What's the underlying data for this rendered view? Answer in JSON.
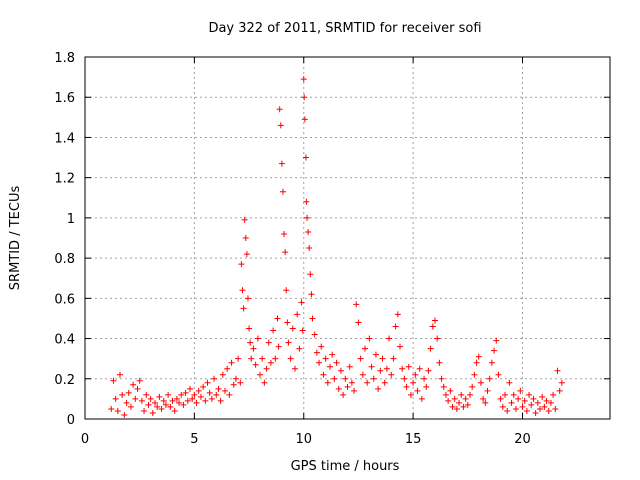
{
  "chart_data": {
    "type": "scatter",
    "title": "Day 322 of 2011, SRMTID for receiver sofi",
    "xlabel": "GPS time / hours",
    "ylabel": "SRMTID / TECUs",
    "xlim": [
      0,
      24
    ],
    "ylim": [
      0,
      1.8
    ],
    "xticks": [
      0,
      5,
      10,
      15,
      20
    ],
    "xtick_labels": [
      "0",
      "5",
      "10",
      "15",
      "20"
    ],
    "yticks": [
      0,
      0.2,
      0.4,
      0.6,
      0.8,
      1.0,
      1.2,
      1.4,
      1.6,
      1.8
    ],
    "ytick_labels": [
      "0",
      "0.2",
      "0.4",
      "0.6",
      "0.8",
      "1",
      "1.2",
      "1.4",
      "1.6",
      "1.8"
    ],
    "grid": true,
    "marker": "+",
    "series": [
      {
        "name": "SRMTID",
        "color": "#ff0000",
        "points": [
          [
            1.2,
            0.05
          ],
          [
            1.3,
            0.19
          ],
          [
            1.4,
            0.1
          ],
          [
            1.5,
            0.04
          ],
          [
            1.6,
            0.22
          ],
          [
            1.7,
            0.12
          ],
          [
            1.8,
            0.02
          ],
          [
            1.9,
            0.08
          ],
          [
            2.0,
            0.13
          ],
          [
            2.1,
            0.06
          ],
          [
            2.2,
            0.17
          ],
          [
            2.3,
            0.1
          ],
          [
            2.4,
            0.15
          ],
          [
            2.5,
            0.19
          ],
          [
            2.6,
            0.09
          ],
          [
            2.7,
            0.04
          ],
          [
            2.8,
            0.12
          ],
          [
            2.9,
            0.07
          ],
          [
            3.0,
            0.1
          ],
          [
            3.1,
            0.03
          ],
          [
            3.2,
            0.08
          ],
          [
            3.3,
            0.06
          ],
          [
            3.4,
            0.11
          ],
          [
            3.5,
            0.05
          ],
          [
            3.6,
            0.09
          ],
          [
            3.7,
            0.07
          ],
          [
            3.8,
            0.12
          ],
          [
            3.9,
            0.06
          ],
          [
            4.0,
            0.09
          ],
          [
            4.1,
            0.04
          ],
          [
            4.2,
            0.1
          ],
          [
            4.3,
            0.08
          ],
          [
            4.4,
            0.12
          ],
          [
            4.5,
            0.07
          ],
          [
            4.6,
            0.13
          ],
          [
            4.7,
            0.09
          ],
          [
            4.8,
            0.15
          ],
          [
            4.9,
            0.1
          ],
          [
            5.0,
            0.12
          ],
          [
            5.1,
            0.08
          ],
          [
            5.2,
            0.14
          ],
          [
            5.3,
            0.11
          ],
          [
            5.4,
            0.16
          ],
          [
            5.5,
            0.09
          ],
          [
            5.6,
            0.18
          ],
          [
            5.7,
            0.13
          ],
          [
            5.8,
            0.1
          ],
          [
            5.9,
            0.2
          ],
          [
            6.0,
            0.12
          ],
          [
            6.1,
            0.15
          ],
          [
            6.2,
            0.09
          ],
          [
            6.3,
            0.22
          ],
          [
            6.4,
            0.14
          ],
          [
            6.5,
            0.25
          ],
          [
            6.6,
            0.12
          ],
          [
            6.7,
            0.28
          ],
          [
            6.8,
            0.17
          ],
          [
            6.9,
            0.2
          ],
          [
            7.0,
            0.3
          ],
          [
            7.1,
            0.18
          ],
          [
            7.15,
            0.77
          ],
          [
            7.2,
            0.64
          ],
          [
            7.25,
            0.55
          ],
          [
            7.3,
            0.99
          ],
          [
            7.35,
            0.9
          ],
          [
            7.4,
            0.82
          ],
          [
            7.45,
            0.6
          ],
          [
            7.5,
            0.45
          ],
          [
            7.55,
            0.38
          ],
          [
            7.6,
            0.3
          ],
          [
            7.7,
            0.35
          ],
          [
            7.8,
            0.27
          ],
          [
            7.9,
            0.4
          ],
          [
            8.0,
            0.22
          ],
          [
            8.1,
            0.3
          ],
          [
            8.2,
            0.18
          ],
          [
            8.3,
            0.25
          ],
          [
            8.4,
            0.38
          ],
          [
            8.5,
            0.28
          ],
          [
            8.6,
            0.44
          ],
          [
            8.7,
            0.3
          ],
          [
            8.8,
            0.5
          ],
          [
            8.85,
            0.36
          ],
          [
            8.9,
            1.54
          ],
          [
            8.95,
            1.46
          ],
          [
            9.0,
            1.27
          ],
          [
            9.05,
            1.13
          ],
          [
            9.1,
            0.92
          ],
          [
            9.15,
            0.83
          ],
          [
            9.2,
            0.64
          ],
          [
            9.25,
            0.48
          ],
          [
            9.3,
            0.38
          ],
          [
            9.4,
            0.3
          ],
          [
            9.5,
            0.45
          ],
          [
            9.6,
            0.25
          ],
          [
            9.7,
            0.52
          ],
          [
            9.8,
            0.35
          ],
          [
            9.9,
            0.58
          ],
          [
            9.95,
            0.44
          ],
          [
            10.0,
            1.69
          ],
          [
            10.02,
            1.6
          ],
          [
            10.05,
            1.49
          ],
          [
            10.1,
            1.3
          ],
          [
            10.12,
            1.08
          ],
          [
            10.15,
            1.0
          ],
          [
            10.2,
            0.93
          ],
          [
            10.25,
            0.85
          ],
          [
            10.3,
            0.72
          ],
          [
            10.35,
            0.62
          ],
          [
            10.4,
            0.5
          ],
          [
            10.5,
            0.42
          ],
          [
            10.6,
            0.33
          ],
          [
            10.7,
            0.28
          ],
          [
            10.8,
            0.36
          ],
          [
            10.9,
            0.22
          ],
          [
            11.0,
            0.3
          ],
          [
            11.1,
            0.18
          ],
          [
            11.2,
            0.26
          ],
          [
            11.3,
            0.32
          ],
          [
            11.4,
            0.2
          ],
          [
            11.5,
            0.28
          ],
          [
            11.6,
            0.15
          ],
          [
            11.7,
            0.24
          ],
          [
            11.8,
            0.12
          ],
          [
            11.9,
            0.2
          ],
          [
            12.0,
            0.16
          ],
          [
            12.1,
            0.26
          ],
          [
            12.2,
            0.18
          ],
          [
            12.3,
            0.14
          ],
          [
            12.4,
            0.57
          ],
          [
            12.5,
            0.48
          ],
          [
            12.6,
            0.3
          ],
          [
            12.7,
            0.22
          ],
          [
            12.8,
            0.35
          ],
          [
            12.9,
            0.18
          ],
          [
            13.0,
            0.4
          ],
          [
            13.1,
            0.26
          ],
          [
            13.2,
            0.2
          ],
          [
            13.3,
            0.32
          ],
          [
            13.4,
            0.15
          ],
          [
            13.5,
            0.24
          ],
          [
            13.6,
            0.3
          ],
          [
            13.7,
            0.18
          ],
          [
            13.8,
            0.25
          ],
          [
            13.9,
            0.4
          ],
          [
            14.0,
            0.22
          ],
          [
            14.1,
            0.3
          ],
          [
            14.2,
            0.46
          ],
          [
            14.3,
            0.52
          ],
          [
            14.4,
            0.36
          ],
          [
            14.5,
            0.25
          ],
          [
            14.6,
            0.2
          ],
          [
            14.7,
            0.16
          ],
          [
            14.8,
            0.26
          ],
          [
            14.9,
            0.12
          ],
          [
            15.0,
            0.18
          ],
          [
            15.1,
            0.22
          ],
          [
            15.2,
            0.14
          ],
          [
            15.3,
            0.25
          ],
          [
            15.4,
            0.1
          ],
          [
            15.5,
            0.2
          ],
          [
            15.6,
            0.16
          ],
          [
            15.7,
            0.24
          ],
          [
            15.8,
            0.35
          ],
          [
            15.9,
            0.46
          ],
          [
            16.0,
            0.49
          ],
          [
            16.1,
            0.4
          ],
          [
            16.2,
            0.28
          ],
          [
            16.3,
            0.2
          ],
          [
            16.4,
            0.16
          ],
          [
            16.5,
            0.12
          ],
          [
            16.6,
            0.09
          ],
          [
            16.7,
            0.14
          ],
          [
            16.8,
            0.06
          ],
          [
            16.9,
            0.1
          ],
          [
            17.0,
            0.05
          ],
          [
            17.1,
            0.08
          ],
          [
            17.2,
            0.12
          ],
          [
            17.3,
            0.06
          ],
          [
            17.4,
            0.1
          ],
          [
            17.5,
            0.07
          ],
          [
            17.6,
            0.12
          ],
          [
            17.7,
            0.16
          ],
          [
            17.8,
            0.22
          ],
          [
            17.9,
            0.28
          ],
          [
            18.0,
            0.31
          ],
          [
            18.1,
            0.18
          ],
          [
            18.2,
            0.1
          ],
          [
            18.3,
            0.08
          ],
          [
            18.4,
            0.14
          ],
          [
            18.5,
            0.2
          ],
          [
            18.6,
            0.28
          ],
          [
            18.7,
            0.34
          ],
          [
            18.8,
            0.39
          ],
          [
            18.9,
            0.22
          ],
          [
            19.0,
            0.1
          ],
          [
            19.1,
            0.06
          ],
          [
            19.2,
            0.12
          ],
          [
            19.3,
            0.04
          ],
          [
            19.4,
            0.18
          ],
          [
            19.5,
            0.08
          ],
          [
            19.6,
            0.12
          ],
          [
            19.7,
            0.05
          ],
          [
            19.8,
            0.1
          ],
          [
            19.9,
            0.14
          ],
          [
            20.0,
            0.06
          ],
          [
            20.1,
            0.09
          ],
          [
            20.2,
            0.04
          ],
          [
            20.3,
            0.12
          ],
          [
            20.4,
            0.07
          ],
          [
            20.5,
            0.1
          ],
          [
            20.6,
            0.03
          ],
          [
            20.7,
            0.08
          ],
          [
            20.8,
            0.05
          ],
          [
            20.9,
            0.11
          ],
          [
            21.0,
            0.06
          ],
          [
            21.1,
            0.09
          ],
          [
            21.2,
            0.04
          ],
          [
            21.3,
            0.08
          ],
          [
            21.4,
            0.12
          ],
          [
            21.5,
            0.05
          ],
          [
            21.6,
            0.24
          ],
          [
            21.7,
            0.14
          ],
          [
            21.8,
            0.18
          ]
        ]
      }
    ]
  }
}
